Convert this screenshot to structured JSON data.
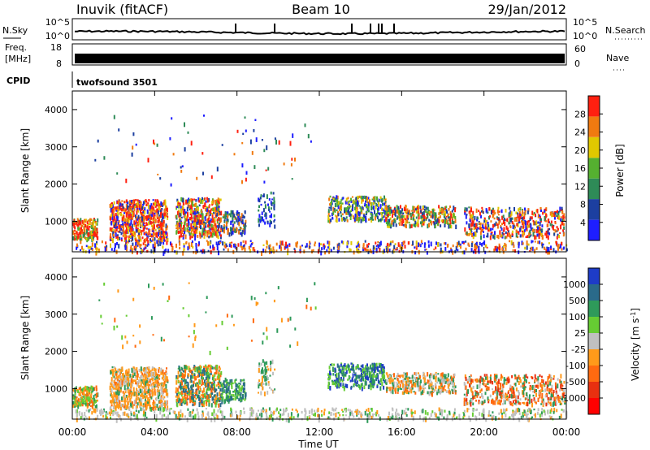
{
  "header": {
    "station": "Inuvik (fitACF)",
    "beam": "Beam 10",
    "date": "29/Jan/2012"
  },
  "panels": {
    "nsky": {
      "label": "N.Sky",
      "ticks": [
        "10^5",
        "10^0"
      ],
      "right_label": "N.Search",
      "right_ticks": [
        "10^5",
        "10^0"
      ]
    },
    "freq": {
      "label_line1": "Freq.",
      "label_line2": "[MHz]",
      "ticks": [
        "18",
        "8"
      ],
      "right_label": "Nave",
      "right_ticks": [
        "60",
        "0"
      ]
    },
    "cpid": {
      "label": "CPID",
      "value": "twofsound 3501"
    }
  },
  "chart_data": [
    {
      "type": "heatmap",
      "title": "",
      "ylabel": "Slant Range [km]",
      "yticks": [
        "1000",
        "2000",
        "3000",
        "4000"
      ],
      "ylim": [
        180,
        4500
      ],
      "colorbar_label": "Power [dB]",
      "colorbar_ticks": [
        "4",
        "8",
        "12",
        "16",
        "20",
        "24",
        "28"
      ],
      "colorbar_colors": [
        "#1e1eff",
        "#1c3fa0",
        "#2e8b57",
        "#55b030",
        "#e0c800",
        "#f07a10",
        "#ff2010"
      ],
      "clim": [
        0,
        30
      ],
      "xlim_hours": [
        0,
        24
      ]
    },
    {
      "type": "heatmap",
      "title": "",
      "ylabel": "Slant Range [km]",
      "yticks": [
        "1000",
        "2000",
        "3000",
        "4000"
      ],
      "ylim": [
        180,
        4500
      ],
      "colorbar_label": "Velocity [m s^-1]",
      "colorbar_ticks": [
        "1000",
        "500",
        "100",
        "25",
        "-25",
        "-100",
        "-500",
        "-1000"
      ],
      "colorbar_colors": [
        "#1e3cc8",
        "#2a6a8a",
        "#2e9a5a",
        "#66cc33",
        "#c0c0c0",
        "#ff9a1a",
        "#ff6a10",
        "#e83010",
        "#ff0000"
      ],
      "xlim_hours": [
        0,
        24
      ]
    }
  ],
  "xaxis": {
    "label": "Time UT",
    "ticks": [
      "00:00",
      "04:00",
      "08:00",
      "12:00",
      "16:00",
      "20:00",
      "00:00"
    ]
  }
}
